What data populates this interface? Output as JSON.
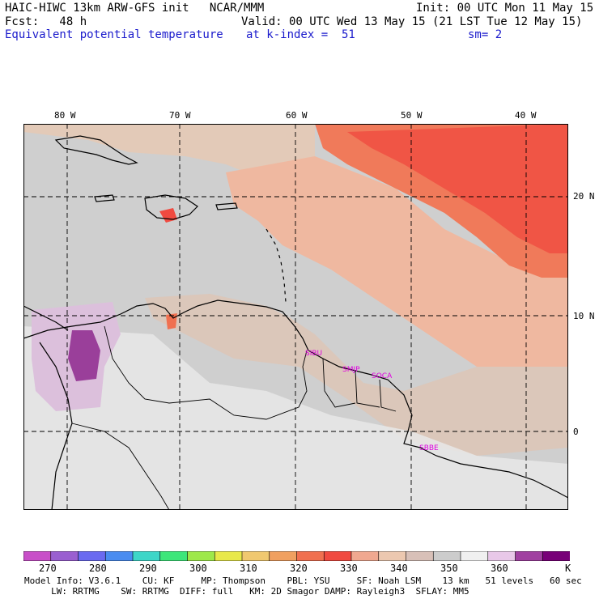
{
  "header": {
    "line1_left": "HAIC-HIWC 13km ARW-GFS init   NCAR/MMM",
    "line1_right": "Init: 00 UTC Mon 11 May 15",
    "line2_left": "Fcst:   48 h",
    "line2_right": "Valid: 00 UTC Wed 13 May 15 (21 LST Tue 12 May 15)",
    "line3_left": "Equivalent potential temperature",
    "line3_mid": "at k-index =  51",
    "line3_right": "sm= 2"
  },
  "map": {
    "lon_labels": [
      "80 W",
      "70 W",
      "60 W",
      "50 W",
      "40 W"
    ],
    "lat_labels": [
      "20 N",
      "10 N",
      "0"
    ],
    "stations": [
      "SIBU",
      "SMJP",
      "SOCA",
      "SBBE"
    ]
  },
  "colorbar": {
    "ticks": [
      "270",
      "280",
      "290",
      "300",
      "310",
      "320",
      "330",
      "340",
      "350",
      "360"
    ],
    "unit": "K",
    "colors": [
      "#c84fc8",
      "#9a5fd0",
      "#6a6af0",
      "#4a8cf0",
      "#3ed6c8",
      "#3ee67a",
      "#9ee84a",
      "#e8e84a",
      "#f0c870",
      "#f0a060",
      "#f07050",
      "#f04a40",
      "#f0a890",
      "#ecc8b0",
      "#d8c0b8",
      "#cccccc",
      "#f0f0f0",
      "#e8c8e8",
      "#a040a0",
      "#780078"
    ]
  },
  "footer": {
    "line1": "Model Info: V3.6.1    CU: KF     MP: Thompson    PBL: YSU     SF: Noah LSM    13 km   51 levels   60 sec",
    "line2": "     LW: RRTMG    SW: RRTMG  DIFF: full   KM: 2D Smagor DAMP: Rayleigh3  SFLAY: MM5"
  }
}
